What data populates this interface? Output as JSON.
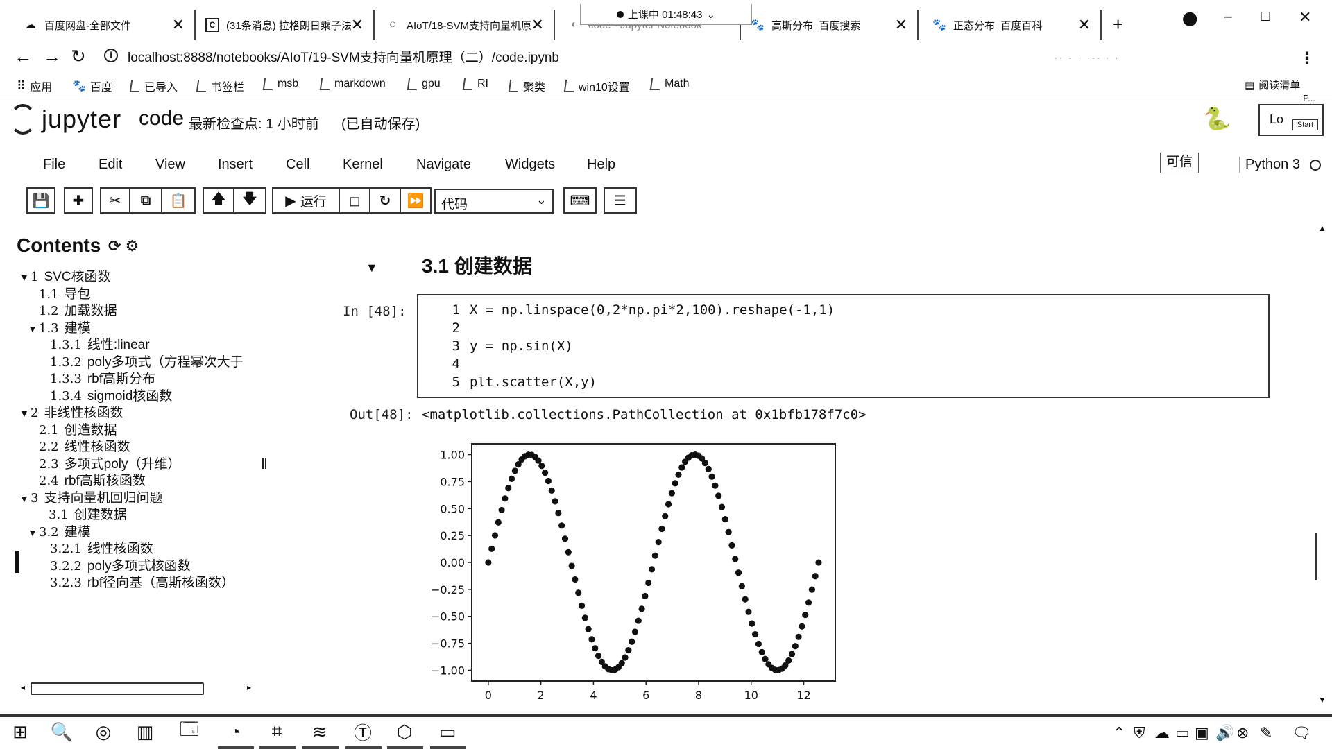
{
  "browser": {
    "tabs": [
      {
        "title": "百度网盘-全部文件",
        "icon": "cloud-icon"
      },
      {
        "title": "(31条消息) 拉格朗日乘子法",
        "icon": "csdn-icon"
      },
      {
        "title": "AIoT/18-SVM支持向量机原",
        "icon": "loading-icon"
      },
      {
        "title": "code - Jupyter Notebook",
        "icon": "jupyter-icon"
      },
      {
        "title": "高斯分布_百度搜索",
        "icon": "baidu-icon"
      },
      {
        "title": "正态分布_百度百科",
        "icon": "baike-icon"
      }
    ],
    "status_pill": "上课中 01:48:43",
    "url": "localhost:8888/notebooks/AIoT/19-SVM支持向量机原理（二）/code.ipynb",
    "bookmarks": [
      "应用",
      "百度",
      "已导入",
      "书签栏",
      "msb",
      "markdown",
      "gpu",
      "RI",
      "聚类",
      "win10设置",
      "Math"
    ],
    "reading_list": "阅读清单"
  },
  "jupyter": {
    "logo_text": "jupyter",
    "notebook_name": "code",
    "checkpoint": "最新检查点: 1 小时前",
    "autosave": "(已自动保存)",
    "login_tip": "P...",
    "login_label": "Lo",
    "login_start": "Start",
    "menu": [
      "File",
      "Edit",
      "View",
      "Insert",
      "Cell",
      "Kernel",
      "Navigate",
      "Widgets",
      "Help"
    ],
    "trusted": "可信",
    "kernel_name": "Python 3",
    "run_label": "运行",
    "cell_type": "代码"
  },
  "toc": {
    "title": "Contents",
    "items": [
      {
        "num": "1",
        "label": "SVC核函数",
        "level": 1,
        "expanded": true
      },
      {
        "num": "1.1",
        "label": "导包",
        "level": 2
      },
      {
        "num": "1.2",
        "label": "加载数据",
        "level": 2
      },
      {
        "num": "1.3",
        "label": "建模",
        "level": 2,
        "expanded": true
      },
      {
        "num": "1.3.1",
        "label": "线性:linear",
        "level": 3
      },
      {
        "num": "1.3.2",
        "label": "poly多项式（方程幂次大于",
        "level": 3
      },
      {
        "num": "1.3.3",
        "label": "rbf高斯分布",
        "level": 3
      },
      {
        "num": "1.3.4",
        "label": "sigmoid核函数",
        "level": 3
      },
      {
        "num": "2",
        "label": "非线性核函数",
        "level": 1,
        "expanded": true
      },
      {
        "num": "2.1",
        "label": "创造数据",
        "level": 2
      },
      {
        "num": "2.2",
        "label": "线性核函数",
        "level": 2
      },
      {
        "num": "2.3",
        "label": "多项式poly（升维）",
        "level": 2
      },
      {
        "num": "2.4",
        "label": "rbf高斯核函数",
        "level": 2
      },
      {
        "num": "3",
        "label": "支持向量机回归问题",
        "level": 1,
        "expanded": true
      },
      {
        "num": "3.1",
        "label": "创建数据",
        "level": 2,
        "active": true
      },
      {
        "num": "3.2",
        "label": "建模",
        "level": 2,
        "expanded": true
      },
      {
        "num": "3.2.1",
        "label": "线性核函数",
        "level": 3
      },
      {
        "num": "3.2.2",
        "label": "poly多项式核函数",
        "level": 3
      },
      {
        "num": "3.2.3",
        "label": "rbf径向基（高斯核函数）",
        "level": 3
      }
    ]
  },
  "notebook": {
    "heading": "3.1  创建数据",
    "in_prompt": "In  [48]:",
    "out_prompt": "Out[48]:",
    "code_lines": [
      {
        "n": "1",
        "text": "X = np.linspace(0,2*np.pi*2,100).reshape(-1,1)"
      },
      {
        "n": "2",
        "text": ""
      },
      {
        "n": "3",
        "text": "y = np.sin(X)"
      },
      {
        "n": "4",
        "text": ""
      },
      {
        "n": "5",
        "text": "plt.scatter(X,y)"
      }
    ],
    "output_text": "<matplotlib.collections.PathCollection at 0x1bfb178f7c0>"
  },
  "chart_data": {
    "type": "scatter",
    "title": "",
    "xlabel": "",
    "ylabel": "",
    "xlim": [
      -0.63,
      13.2
    ],
    "ylim": [
      -1.1,
      1.1
    ],
    "xticks": [
      0,
      2,
      4,
      6,
      8,
      10,
      12
    ],
    "xtick_labels": [
      "0",
      "2",
      "4",
      "6",
      "8",
      "10",
      "12"
    ],
    "yticks": [
      1.0,
      0.75,
      0.5,
      0.25,
      0.0,
      -0.25,
      -0.5,
      -0.75,
      -1.0
    ],
    "ytick_labels": [
      "1.00",
      "0.75",
      "0.50",
      "0.25",
      "0.00",
      "−0.25",
      "−0.50",
      "−0.75",
      "−1.00"
    ],
    "series": [
      {
        "color": "#111111",
        "n_points": 100,
        "x_range": [
          0,
          12.566
        ],
        "function": "y = sin(x)"
      }
    ]
  },
  "taskbar": {
    "icons": [
      "windows-icon",
      "search-icon",
      "cortana-icon",
      "taskview-icon",
      "explorer-icon",
      "chrome-icon",
      "pycharm-icon",
      "vscode-icon",
      "typora-icon",
      "app-icon",
      "terminal-icon"
    ],
    "tray": [
      "chevron-up-icon",
      "security-icon",
      "cloud-icon",
      "battery-icon",
      "display-icon",
      "volume-icon",
      "close-circle-icon",
      "ime-icon",
      "notification-icon"
    ]
  }
}
